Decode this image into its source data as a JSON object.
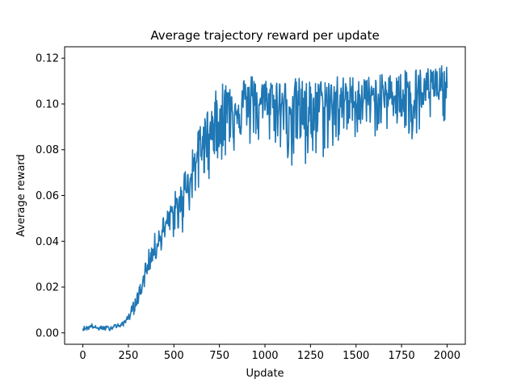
{
  "chart_data": {
    "type": "line",
    "title": "Average trajectory reward per update",
    "xlabel": "Update",
    "ylabel": "Average reward",
    "xlim": [
      -100,
      2100
    ],
    "ylim": [
      -0.005,
      0.125
    ],
    "xticks": [
      0,
      250,
      500,
      750,
      1000,
      1250,
      1500,
      1750,
      2000
    ],
    "xtick_labels": [
      "0",
      "250",
      "500",
      "750",
      "1000",
      "1250",
      "1500",
      "1750",
      "2000"
    ],
    "yticks": [
      0.0,
      0.02,
      0.04,
      0.06,
      0.08,
      0.1,
      0.12
    ],
    "ytick_labels": [
      "0.00",
      "0.02",
      "0.04",
      "0.06",
      "0.08",
      "0.10",
      "0.12"
    ],
    "grid": false,
    "legend": "none",
    "series": [
      {
        "color": "#1f77b4",
        "x": [
          0,
          25,
          50,
          75,
          100,
          125,
          150,
          175,
          200,
          225,
          250,
          275,
          300,
          325,
          350,
          375,
          400,
          425,
          450,
          475,
          500,
          525,
          550,
          575,
          600,
          625,
          650,
          675,
          700,
          725,
          750,
          775,
          800,
          825,
          850,
          875,
          900,
          925,
          950,
          975,
          1000,
          1025,
          1050,
          1075,
          1100,
          1125,
          1150,
          1175,
          1200,
          1225,
          1250,
          1275,
          1300,
          1325,
          1350,
          1375,
          1400,
          1425,
          1450,
          1475,
          1500,
          1525,
          1550,
          1575,
          1600,
          1625,
          1650,
          1675,
          1700,
          1725,
          1750,
          1775,
          1800,
          1825,
          1850,
          1875,
          1900,
          1925,
          1950,
          1975,
          2000
        ],
        "values": [
          0.002,
          0.002,
          0.003,
          0.002,
          0.002,
          0.002,
          0.002,
          0.003,
          0.003,
          0.004,
          0.007,
          0.01,
          0.015,
          0.02,
          0.028,
          0.033,
          0.038,
          0.042,
          0.046,
          0.05,
          0.053,
          0.055,
          0.06,
          0.065,
          0.07,
          0.075,
          0.08,
          0.085,
          0.088,
          0.09,
          0.093,
          0.095,
          0.097,
          0.098,
          0.099,
          0.1,
          0.1,
          0.1,
          0.1,
          0.1,
          0.099,
          0.099,
          0.1,
          0.099,
          0.098,
          0.099,
          0.099,
          0.1,
          0.098,
          0.097,
          0.098,
          0.098,
          0.099,
          0.099,
          0.1,
          0.1,
          0.1,
          0.101,
          0.101,
          0.101,
          0.101,
          0.102,
          0.102,
          0.102,
          0.102,
          0.103,
          0.103,
          0.103,
          0.103,
          0.104,
          0.104,
          0.104,
          0.104,
          0.104,
          0.105,
          0.105,
          0.105,
          0.106,
          0.106,
          0.106,
          0.107
        ],
        "low": [
          0.001,
          0.001,
          0.002,
          0.001,
          0.001,
          0.001,
          0.001,
          0.002,
          0.002,
          0.003,
          0.005,
          0.007,
          0.012,
          0.017,
          0.022,
          0.029,
          0.03,
          0.036,
          0.036,
          0.04,
          0.041,
          0.044,
          0.043,
          0.05,
          0.055,
          0.058,
          0.065,
          0.066,
          0.068,
          0.075,
          0.076,
          0.073,
          0.08,
          0.078,
          0.082,
          0.085,
          0.083,
          0.08,
          0.083,
          0.08,
          0.085,
          0.082,
          0.083,
          0.08,
          0.077,
          0.075,
          0.07,
          0.069,
          0.075,
          0.066,
          0.071,
          0.07,
          0.078,
          0.075,
          0.08,
          0.077,
          0.081,
          0.082,
          0.084,
          0.085,
          0.085,
          0.09,
          0.087,
          0.09,
          0.085,
          0.088,
          0.082,
          0.09,
          0.088,
          0.089,
          0.09,
          0.082,
          0.08,
          0.085,
          0.068,
          0.085,
          0.09,
          0.096,
          0.092,
          0.093,
          0.091
        ],
        "high": [
          0.003,
          0.003,
          0.004,
          0.003,
          0.003,
          0.003,
          0.003,
          0.004,
          0.004,
          0.005,
          0.009,
          0.013,
          0.018,
          0.024,
          0.035,
          0.038,
          0.045,
          0.047,
          0.053,
          0.054,
          0.063,
          0.06,
          0.07,
          0.074,
          0.083,
          0.085,
          0.095,
          0.096,
          0.1,
          0.105,
          0.109,
          0.111,
          0.112,
          0.11,
          0.111,
          0.112,
          0.112,
          0.113,
          0.115,
          0.112,
          0.111,
          0.112,
          0.113,
          0.112,
          0.11,
          0.111,
          0.11,
          0.112,
          0.111,
          0.111,
          0.11,
          0.111,
          0.11,
          0.112,
          0.112,
          0.111,
          0.114,
          0.112,
          0.111,
          0.113,
          0.111,
          0.113,
          0.113,
          0.112,
          0.112,
          0.112,
          0.114,
          0.113,
          0.114,
          0.117,
          0.113,
          0.117,
          0.115,
          0.116,
          0.116,
          0.113,
          0.118,
          0.116,
          0.117,
          0.117,
          0.116
        ]
      }
    ]
  }
}
